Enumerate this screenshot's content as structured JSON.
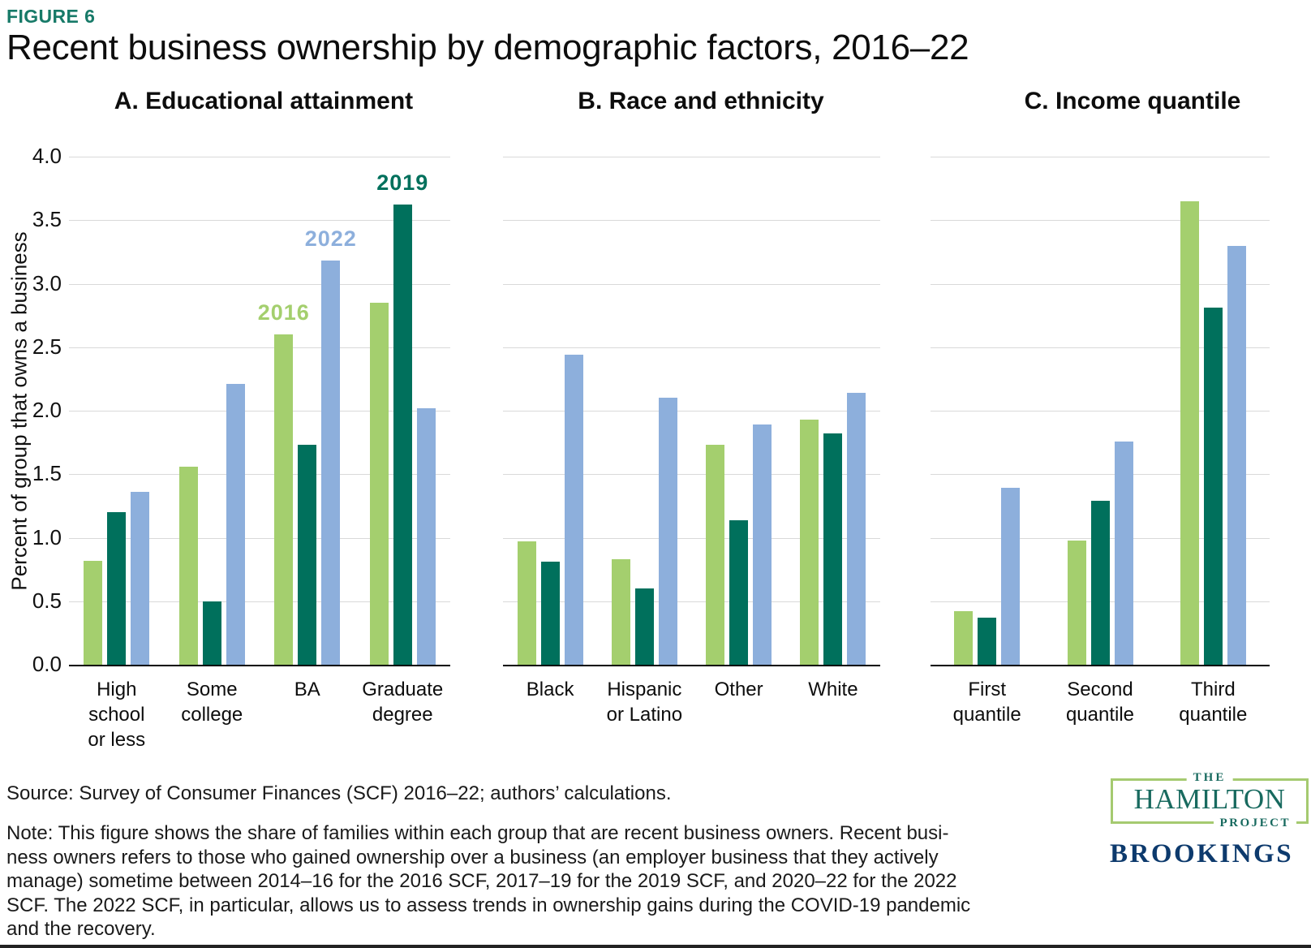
{
  "figure_label": "FIGURE 6",
  "title": "Recent business ownership by demographic factors, 2016–22",
  "colors": {
    "series_2016": "#a4cf6e",
    "series_2019": "#00705c",
    "series_2022": "#8dafdc",
    "gridline": "#d9d9d9",
    "axis": "#000000",
    "figure_label_teal": "#177a68",
    "hamilton_teal": "#186a5f",
    "hamilton_border_green": "#a5ca70",
    "brookings_navy": "#0d3a6d"
  },
  "chart_data": {
    "type": "bar",
    "ylabel": "Percent of group that owns a business",
    "ylim": [
      0,
      4.0
    ],
    "yticks": [
      0.0,
      0.5,
      1.0,
      1.5,
      2.0,
      2.5,
      3.0,
      3.5,
      4.0
    ],
    "grid": "horizontal",
    "legend_position": "inline-labels-above-bars",
    "series_names": [
      "2016",
      "2019",
      "2022"
    ],
    "panels": [
      {
        "title": "A. Educational attainment",
        "categories": [
          "High school or less",
          "Some college",
          "BA",
          "Graduate degree"
        ],
        "category_lines": [
          [
            "High",
            "school",
            "or less"
          ],
          [
            "Some",
            "college"
          ],
          [
            "BA"
          ],
          [
            "Graduate",
            "degree"
          ]
        ],
        "series": [
          {
            "name": "2016",
            "values": [
              0.82,
              1.56,
              2.6,
              2.85
            ]
          },
          {
            "name": "2019",
            "values": [
              1.2,
              0.5,
              1.73,
              3.62
            ]
          },
          {
            "name": "2022",
            "values": [
              1.36,
              2.21,
              3.18,
              2.02
            ]
          }
        ]
      },
      {
        "title": "B. Race and ethnicity",
        "categories": [
          "Black",
          "Hispanic or Latino",
          "Other",
          "White"
        ],
        "category_lines": [
          [
            "Black"
          ],
          [
            "Hispanic",
            "or Latino"
          ],
          [
            "Other"
          ],
          [
            "White"
          ]
        ],
        "series": [
          {
            "name": "2016",
            "values": [
              0.97,
              0.83,
              1.73,
              1.93
            ]
          },
          {
            "name": "2019",
            "values": [
              0.81,
              0.6,
              1.14,
              1.82
            ]
          },
          {
            "name": "2022",
            "values": [
              2.44,
              2.1,
              1.89,
              2.14
            ]
          }
        ]
      },
      {
        "title": "C. Income quantile",
        "categories": [
          "First quantile",
          "Second quantile",
          "Third quantile"
        ],
        "category_lines": [
          [
            "First",
            "quantile"
          ],
          [
            "Second",
            "quantile"
          ],
          [
            "Third",
            "quantile"
          ]
        ],
        "series": [
          {
            "name": "2016",
            "values": [
              0.42,
              0.98,
              3.65
            ]
          },
          {
            "name": "2019",
            "values": [
              0.37,
              1.29,
              2.81
            ]
          },
          {
            "name": "2022",
            "values": [
              1.39,
              1.76,
              3.3
            ]
          }
        ]
      }
    ],
    "series_annotations": [
      {
        "label": "2016",
        "panel": 0,
        "group": 2,
        "series": "2016"
      },
      {
        "label": "2022",
        "panel": 0,
        "group": 2,
        "series": "2022"
      },
      {
        "label": "2019",
        "panel": 0,
        "group": 3,
        "series": "2019"
      }
    ]
  },
  "footer": {
    "source": "Source: Survey of Consumer Finances (SCF) 2016–22; authors’ calculations.",
    "note_lines": [
      "Note: This figure shows the share of families within each group that are recent business owners. Recent busi-",
      "ness owners refers to those who gained ownership over a business (an employer business that they actively",
      "manage) sometime between 2014–16 for the 2016 SCF, 2017–19 for the 2019 SCF, and 2020–22 for the 2022",
      "SCF. The 2022 SCF, in particular, allows us to assess trends in ownership gains during the COVID-19 pandemic",
      "and the recovery."
    ]
  },
  "logos": {
    "hamilton": {
      "line1": "THE",
      "line2": "HAMILTON",
      "line3": "PROJECT"
    },
    "brookings": "BROOKINGS"
  }
}
